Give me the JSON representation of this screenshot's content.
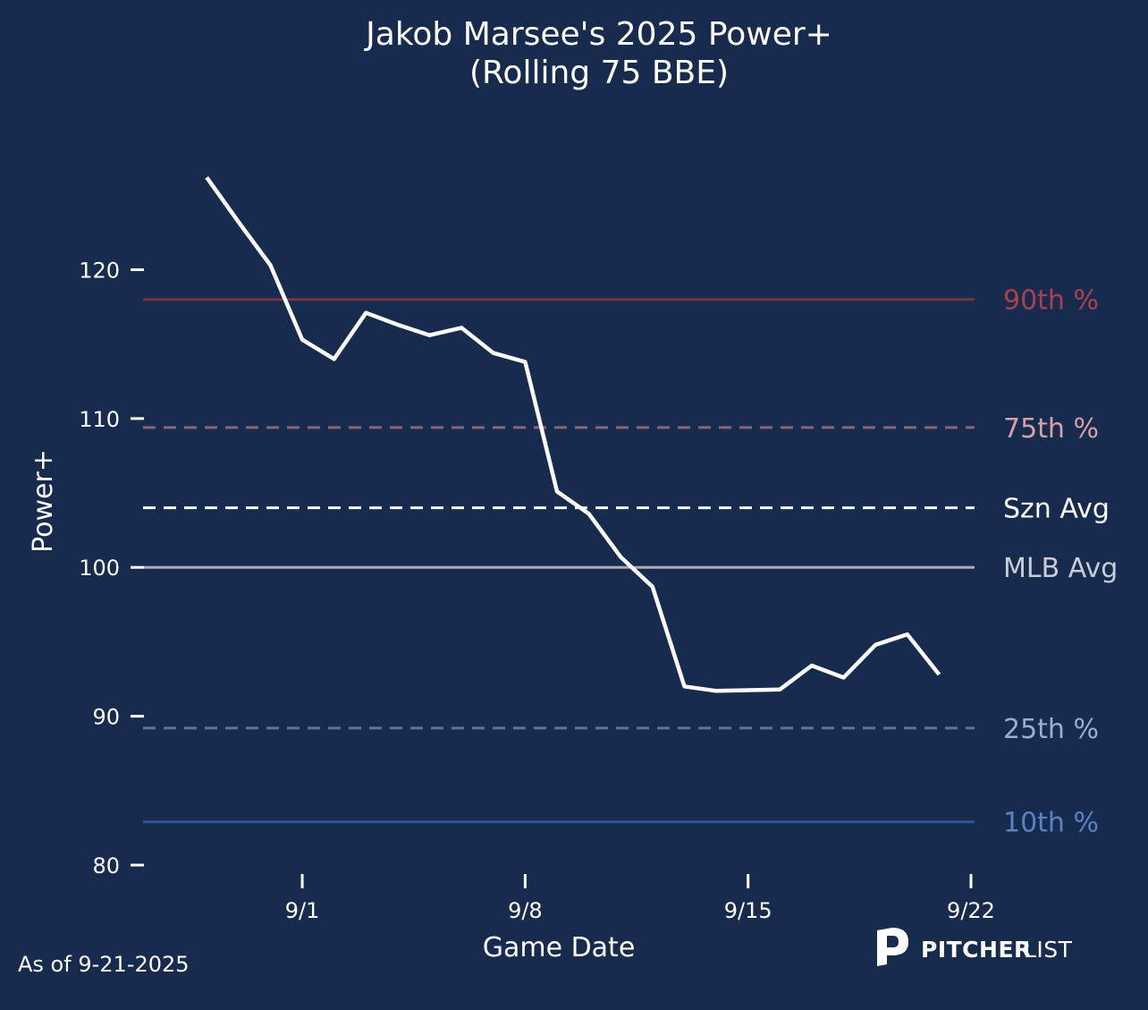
{
  "chart_data": {
    "type": "line",
    "title": "Jakob Marsee's 2025 Power+",
    "subtitle": "(Rolling 75 BBE)",
    "xlabel": "Game Date",
    "ylabel": "Power+",
    "ylim": [
      80,
      127
    ],
    "xlim": [
      "2025-08-27",
      "2025-09-22"
    ],
    "yticks": [
      80,
      90,
      100,
      110,
      120
    ],
    "xticks": [
      {
        "date": "2025-09-01",
        "label": "9/1"
      },
      {
        "date": "2025-09-08",
        "label": "9/8"
      },
      {
        "date": "2025-09-15",
        "label": "9/15"
      },
      {
        "date": "2025-09-22",
        "label": "9/22"
      }
    ],
    "grid": false,
    "series": [
      {
        "color": "#ffffff",
        "points": [
          {
            "x": "2025-08-29",
            "y": 126.2
          },
          {
            "x": "2025-08-30",
            "y": 123.2
          },
          {
            "x": "2025-08-31",
            "y": 120.3
          },
          {
            "x": "2025-09-01",
            "y": 115.3
          },
          {
            "x": "2025-09-02",
            "y": 114.0
          },
          {
            "x": "2025-09-03",
            "y": 117.1
          },
          {
            "x": "2025-09-04",
            "y": 116.3
          },
          {
            "x": "2025-09-05",
            "y": 115.6
          },
          {
            "x": "2025-09-06",
            "y": 116.1
          },
          {
            "x": "2025-09-07",
            "y": 114.4
          },
          {
            "x": "2025-09-08",
            "y": 113.8
          },
          {
            "x": "2025-09-09",
            "y": 105.1
          },
          {
            "x": "2025-09-10",
            "y": 103.6
          },
          {
            "x": "2025-09-11",
            "y": 100.7
          },
          {
            "x": "2025-09-12",
            "y": 98.7
          },
          {
            "x": "2025-09-13",
            "y": 92.0
          },
          {
            "x": "2025-09-14",
            "y": 91.7
          },
          {
            "x": "2025-09-16",
            "y": 91.8
          },
          {
            "x": "2025-09-17",
            "y": 93.4
          },
          {
            "x": "2025-09-18",
            "y": 92.6
          },
          {
            "x": "2025-09-19",
            "y": 94.8
          },
          {
            "x": "2025-09-20",
            "y": 95.5
          },
          {
            "x": "2025-09-21",
            "y": 92.8
          }
        ]
      }
    ],
    "reference_lines": [
      {
        "label": "90th %",
        "value": 118.0,
        "line_color": "#7a3140",
        "text_color": "#a9404e",
        "dash": "solid"
      },
      {
        "label": "75th %",
        "value": 109.4,
        "line_color": "#8a6673",
        "text_color": "#d6a0a5",
        "dash": "dashed"
      },
      {
        "label": "Szn Avg",
        "value": 104.0,
        "line_color": "#ffffff",
        "text_color": "#ffffff",
        "dash": "dashed"
      },
      {
        "label": "MLB Avg",
        "value": 100.0,
        "line_color": "#a8adb6",
        "text_color": "#c8ccd4",
        "dash": "solid"
      },
      {
        "label": "25th %",
        "value": 89.2,
        "line_color": "#5f7393",
        "text_color": "#9aaed0",
        "dash": "dashed"
      },
      {
        "label": "10th %",
        "value": 82.9,
        "line_color": "#2f5596",
        "text_color": "#5a82c2",
        "dash": "solid"
      }
    ]
  },
  "footer": {
    "as_of": "As of 9-21-2025",
    "brand_bold": "PITCHER",
    "brand_light": "LIST"
  },
  "colors": {
    "background": "#172b4f",
    "text": "#ffffff"
  }
}
